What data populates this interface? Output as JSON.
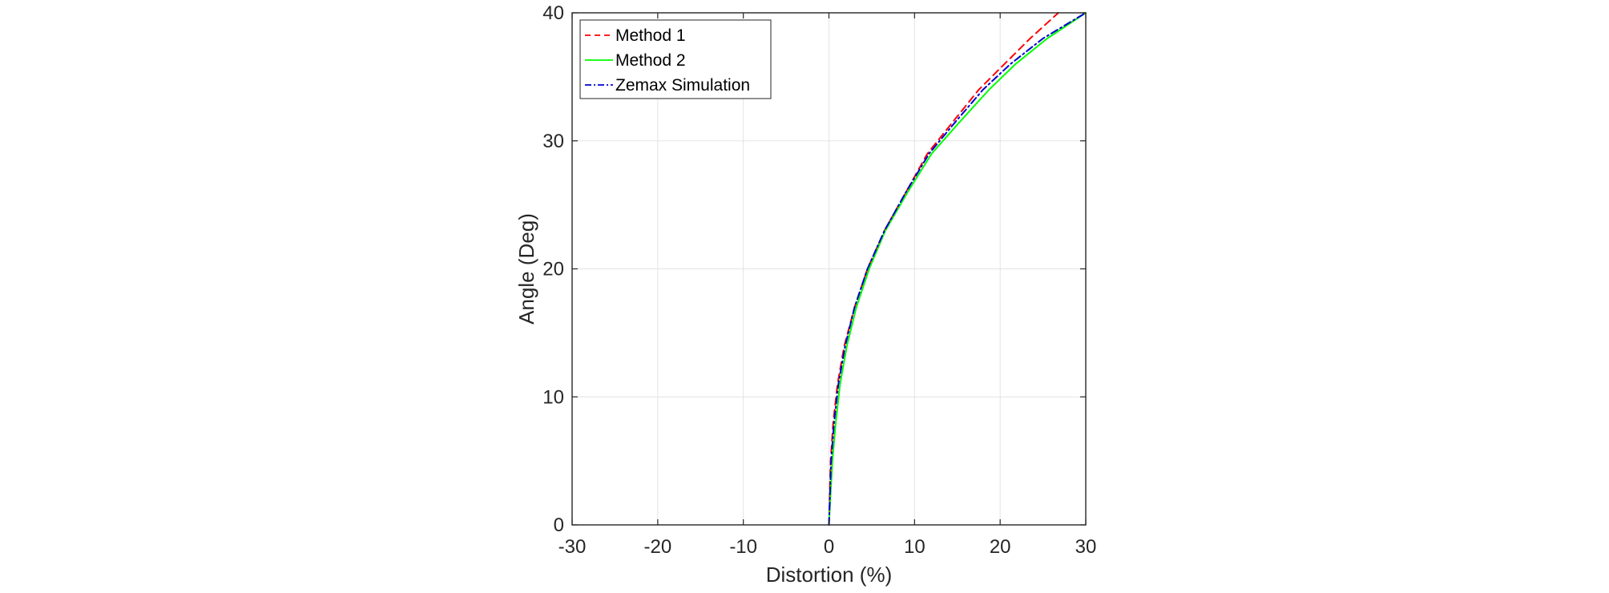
{
  "chart_data": {
    "type": "line",
    "title": "",
    "xlabel": "Distortion (%)",
    "ylabel": "Angle (Deg)",
    "xlim": [
      -30,
      30
    ],
    "ylim": [
      0,
      40
    ],
    "xticks": [
      -30,
      -20,
      -10,
      0,
      10,
      20,
      30
    ],
    "yticks": [
      0,
      10,
      20,
      30,
      40
    ],
    "xtick_labels": [
      "-30",
      "-20",
      "-10",
      "0",
      "10",
      "20",
      "30"
    ],
    "ytick_labels": [
      "0",
      "10",
      "20",
      "30",
      "40"
    ],
    "grid": true,
    "legend_position": "top-left",
    "series": [
      {
        "name": "Method 1",
        "color": "#ff0000",
        "style": "dashed",
        "x": [
          0,
          0.2,
          0.5,
          1.0,
          1.8,
          3.0,
          4.5,
          6.5,
          9.0,
          11.5,
          14.5,
          17.5,
          20.5,
          23.5,
          26.8
        ],
        "y": [
          0,
          5,
          8,
          11,
          14,
          17,
          20,
          23,
          26,
          29,
          31.5,
          34,
          36,
          38,
          40
        ]
      },
      {
        "name": "Method 2",
        "color": "#00ff00",
        "style": "solid",
        "x": [
          0,
          0.4,
          0.8,
          1.3,
          2.1,
          3.2,
          4.7,
          6.6,
          9.2,
          12.0,
          15.3,
          18.7,
          21.8,
          25.5,
          30.0
        ],
        "y": [
          0,
          5,
          8,
          11,
          14,
          17,
          20,
          23,
          26,
          29,
          31.5,
          34,
          36,
          38,
          40
        ]
      },
      {
        "name": "Zemax Simulation",
        "color": "#0000cc",
        "style": "dashdot",
        "x": [
          0,
          0.25,
          0.6,
          1.1,
          1.9,
          3.0,
          4.5,
          6.5,
          9.0,
          11.7,
          14.8,
          18.0,
          21.2,
          25.0,
          30.0
        ],
        "y": [
          0,
          5,
          8,
          11,
          14,
          17,
          20,
          23,
          26,
          29,
          31.5,
          34,
          36,
          38,
          40
        ]
      }
    ]
  }
}
